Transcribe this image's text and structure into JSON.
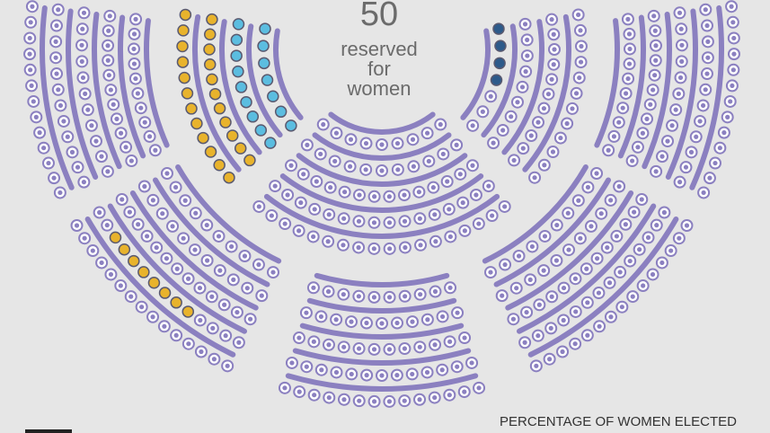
{
  "center": {
    "number": "50",
    "label_lines": [
      "reserved",
      "for",
      "women"
    ]
  },
  "footer": {
    "title": "PERCENTAGE OF WOMEN ELECTED"
  }
}
